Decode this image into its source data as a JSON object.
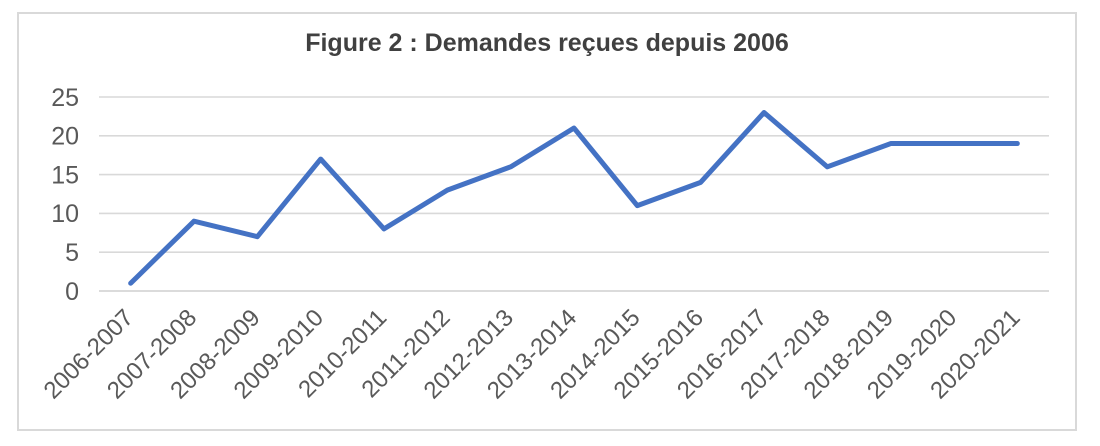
{
  "chart_data": {
    "type": "line",
    "title": "Figure 2 : Demandes reçues depuis 2006",
    "categories": [
      "2006-2007",
      "2007-2008",
      "2008-2009",
      "2009-2010",
      "2010-2011",
      "2011-2012",
      "2012-2013",
      "2013-2014",
      "2014-2015",
      "2015-2016",
      "2016-2017",
      "2017-2018",
      "2018-2019",
      "2019-2020",
      "2020-2021"
    ],
    "values": [
      1,
      9,
      7,
      17,
      8,
      13,
      16,
      21,
      11,
      14,
      23,
      16,
      19,
      19,
      19
    ],
    "xlabel": "",
    "ylabel": "",
    "ylim": [
      0,
      25
    ],
    "yticks": [
      0,
      5,
      10,
      15,
      20,
      25
    ],
    "grid": true,
    "legend": false,
    "x_tick_rotation_deg": -45
  },
  "styles": {
    "line_color": "#4472C4",
    "grid_color": "#D9D9D9",
    "axis_line_color": "#CFCFCF",
    "tick_label_color": "#595959",
    "title_color": "#404040",
    "frame_border_color": "#D9D9D9",
    "background_color": "#FFFFFF"
  }
}
